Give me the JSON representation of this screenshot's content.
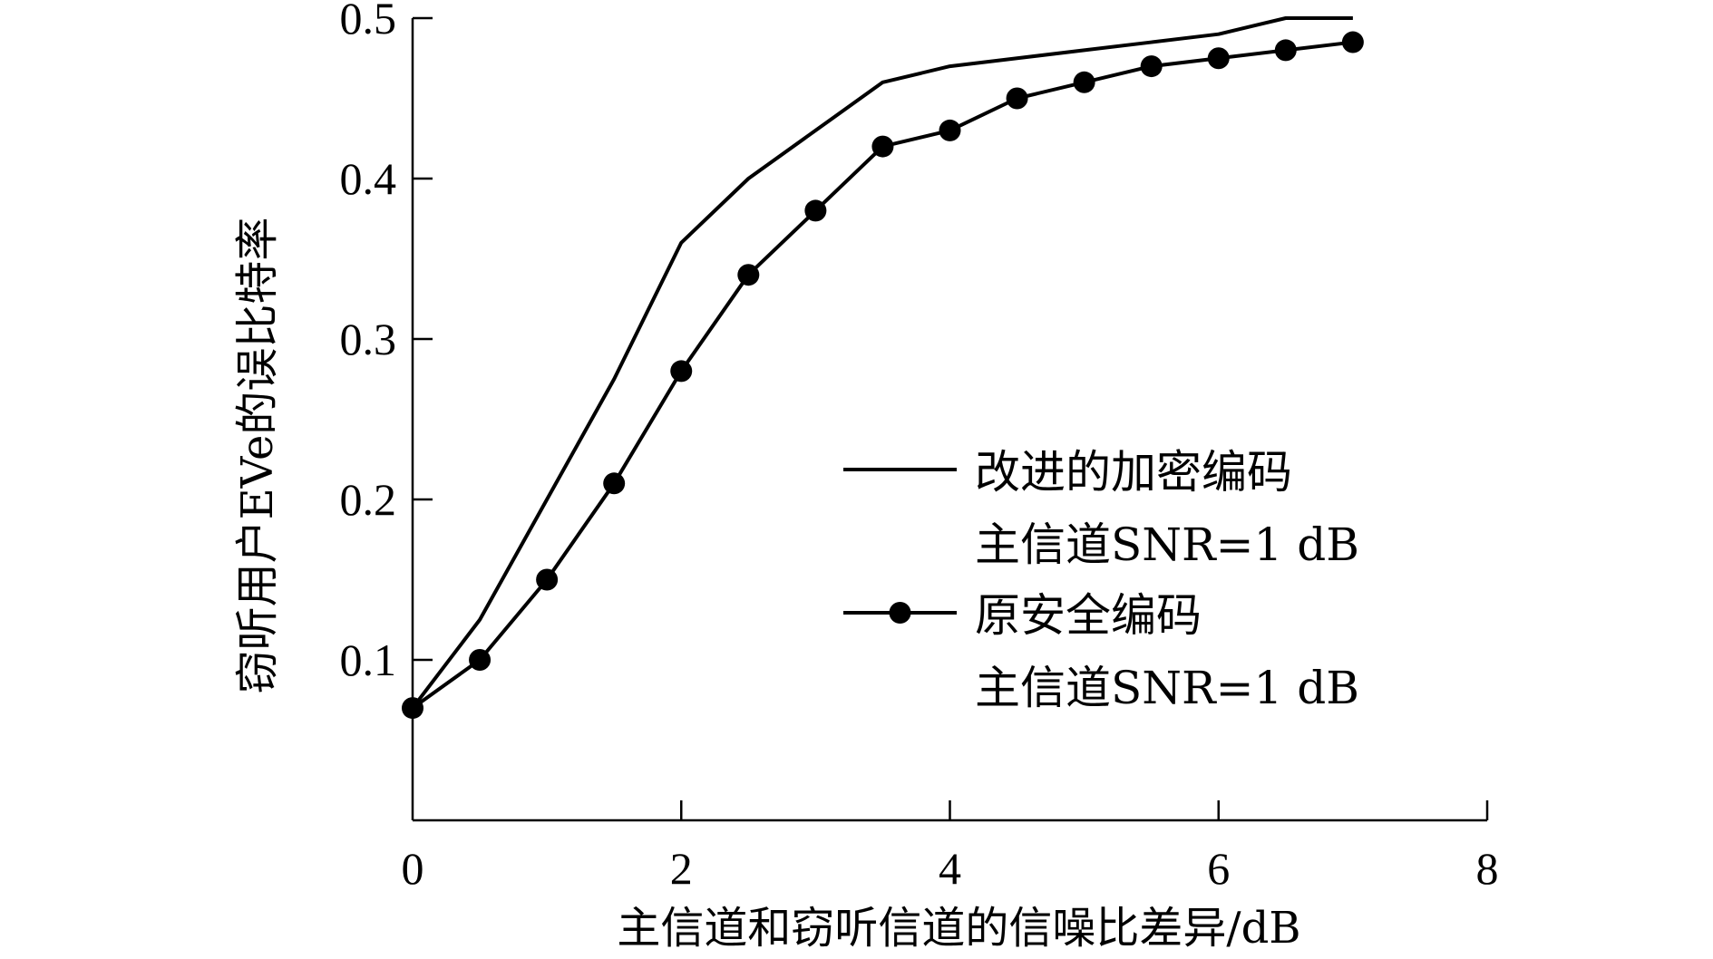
{
  "chart_data": {
    "type": "line",
    "xlabel": "主信道和窃听信道的信噪比差异/dB",
    "ylabel": "窃听用户EVe的误比特率",
    "xlim": [
      0,
      8
    ],
    "ylim": [
      0,
      0.5
    ],
    "xticks": [
      "0",
      "2",
      "4",
      "6",
      "8"
    ],
    "yticks": [
      "0.1",
      "0.2",
      "0.3",
      "0.4",
      "0.5"
    ],
    "grid": false,
    "legend_position": "right",
    "series": [
      {
        "name": "改进的加密编码",
        "name_line2": "主信道SNR=1 dB",
        "marker": "none",
        "color": "#000000",
        "x": [
          0,
          0.5,
          1.0,
          1.5,
          2.0,
          2.5,
          3.0,
          3.5,
          4.0,
          4.5,
          5.0,
          5.5,
          6.0,
          6.5,
          7.0
        ],
        "y": [
          0.07,
          0.125,
          0.2,
          0.275,
          0.36,
          0.4,
          0.43,
          0.46,
          0.47,
          0.475,
          0.48,
          0.485,
          0.49,
          0.5,
          0.5
        ]
      },
      {
        "name": "原安全编码",
        "name_line2": "主信道SNR=1 dB",
        "marker": "circle",
        "color": "#000000",
        "x": [
          0,
          0.5,
          1.0,
          1.5,
          2.0,
          2.5,
          3.0,
          3.5,
          4.0,
          4.5,
          5.0,
          5.5,
          6.0,
          6.5,
          7.0
        ],
        "y": [
          0.07,
          0.1,
          0.15,
          0.21,
          0.28,
          0.34,
          0.38,
          0.42,
          0.43,
          0.45,
          0.46,
          0.47,
          0.475,
          0.48,
          0.485
        ]
      }
    ]
  }
}
